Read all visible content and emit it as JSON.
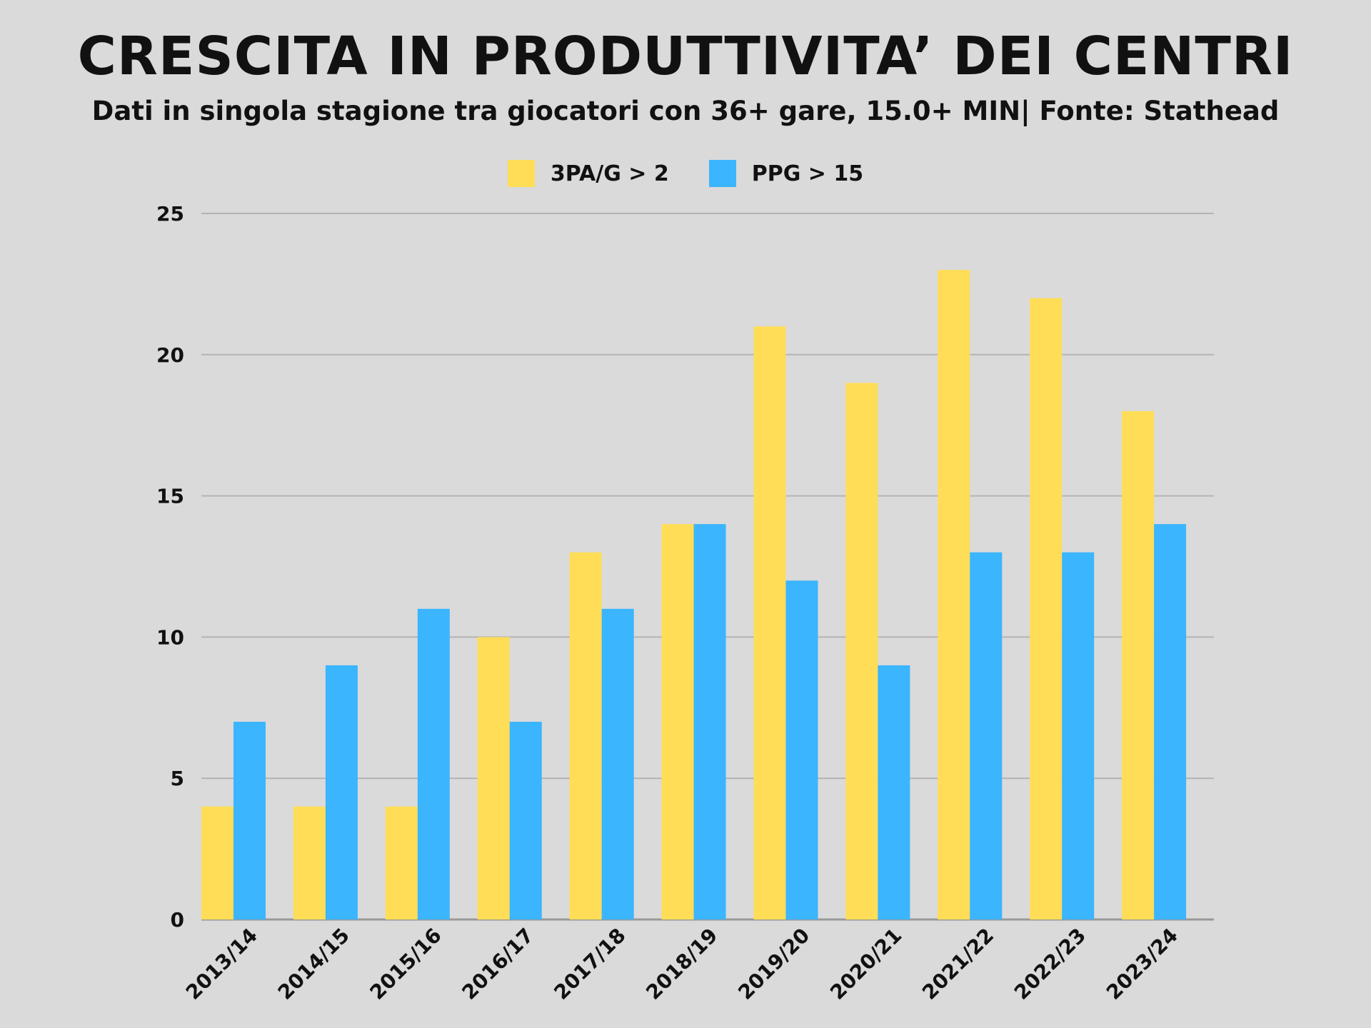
{
  "chart_data": {
    "type": "bar",
    "title": "CRESCITA IN PRODUTTIVITA’ DEI CENTRI",
    "subtitle": "Dati in singola stagione tra giocatori con 36+ gare, 15.0+ MIN| Fonte: Stathead",
    "xlabel": "",
    "ylabel": "",
    "ylim": [
      0,
      25
    ],
    "yticks": [
      0,
      5,
      10,
      15,
      20,
      25
    ],
    "grid": true,
    "legend_position": "top-center",
    "categories": [
      "2013/14",
      "2014/15",
      "2015/16",
      "2016/17",
      "2017/18",
      "2018/19",
      "2019/20",
      "2020/21",
      "2021/22",
      "2022/23",
      "2023/24"
    ],
    "series": [
      {
        "name": "3PA/G > 2",
        "color": "#ffdd57",
        "values": [
          4,
          4,
          4,
          10,
          13,
          14,
          21,
          19,
          23,
          22,
          18
        ]
      },
      {
        "name": "PPG > 15",
        "color": "#3bb5fd",
        "values": [
          7,
          9,
          11,
          7,
          11,
          14,
          12,
          9,
          13,
          13,
          14
        ]
      }
    ]
  }
}
